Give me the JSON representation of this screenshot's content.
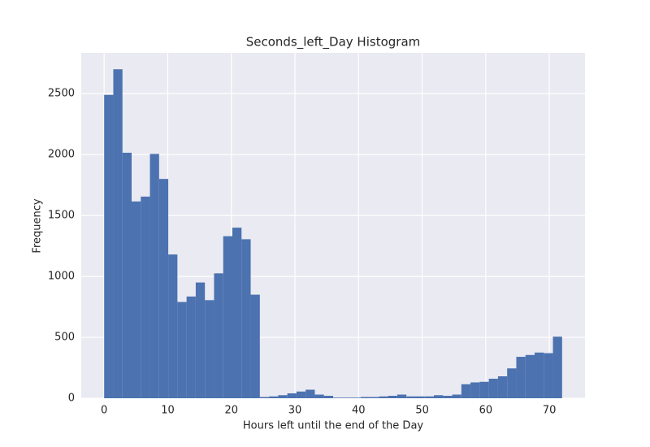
{
  "chart_data": {
    "type": "histogram",
    "title": "Seconds_left_Day Histogram",
    "xlabel": "Hours left until the end of the Day",
    "ylabel": "Frequency",
    "color": "#4c72b0",
    "grid": true,
    "bins": [
      0,
      1.44,
      2.88,
      4.32,
      5.76,
      7.2,
      8.64,
      10.08,
      11.52,
      12.96,
      14.4,
      15.84,
      17.28,
      18.72,
      20.16,
      21.6,
      23.04,
      24.48,
      25.92,
      27.36,
      28.8,
      30.24,
      31.68,
      33.12,
      34.56,
      36,
      37.44,
      38.88,
      40.32,
      41.76,
      43.2,
      44.64,
      46.08,
      47.52,
      48.96,
      50.4,
      51.84,
      53.28,
      54.72,
      56.16,
      57.6,
      59.04,
      60.48,
      61.92,
      63.36,
      64.8,
      66.24,
      67.68,
      69.12,
      70.56,
      72
    ],
    "values": [
      2490,
      2700,
      2015,
      1615,
      1655,
      2005,
      1800,
      1180,
      790,
      835,
      950,
      805,
      1025,
      1330,
      1400,
      1305,
      850,
      10,
      15,
      25,
      40,
      55,
      70,
      30,
      20,
      5,
      5,
      5,
      10,
      10,
      15,
      20,
      30,
      15,
      15,
      15,
      25,
      20,
      30,
      115,
      130,
      135,
      160,
      180,
      245,
      340,
      355,
      375,
      370,
      505
    ],
    "xlim": [
      -3.6,
      75.6
    ],
    "ylim": [
      0,
      2835
    ],
    "xticks": [
      0,
      10,
      20,
      30,
      40,
      50,
      60,
      70
    ],
    "yticks": [
      0,
      500,
      1000,
      1500,
      2000,
      2500
    ]
  }
}
